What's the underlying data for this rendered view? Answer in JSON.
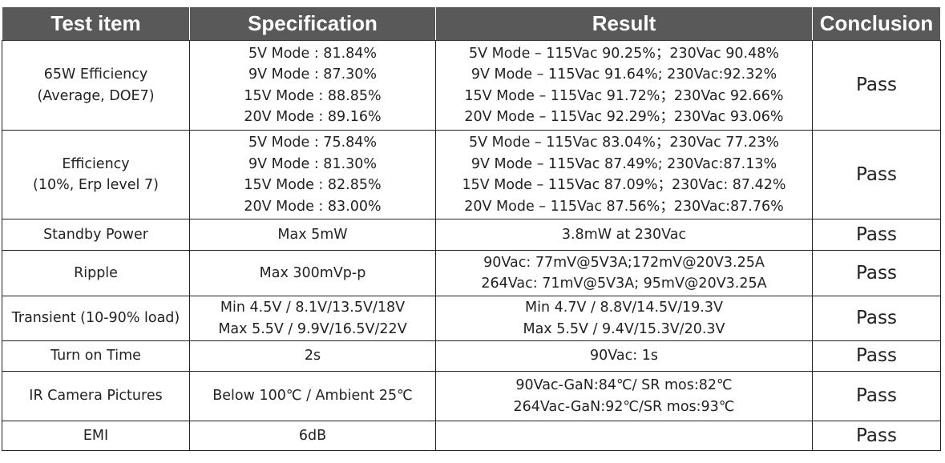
{
  "table": {
    "header": [
      "Test item",
      "Specification",
      "Result",
      "Conclusion"
    ],
    "rows": [
      [
        [
          "65W Efficiency",
          "(Average, DOE7)"
        ],
        [
          "5V Mode : 81.84%",
          "9V Mode : 87.30%",
          "15V Mode : 88.85%",
          "20V Mode : 89.16%"
        ],
        [
          "5V Mode – 115Vac 90.25%；230Vac 90.48%",
          "9V Mode – 115Vac 91.64%; 230Vac:92.32%",
          "15V Mode – 115Vac 91.72%；230Vac 92.66%",
          "20V Mode – 115Vac 92.29%；230Vac 93.06%"
        ],
        [
          "Pass"
        ]
      ],
      [
        [
          "Efficiency",
          "(10%, Erp level 7)"
        ],
        [
          "5V Mode : 75.84%",
          "9V Mode : 81.30%",
          "15V Mode : 82.85%",
          "20V Mode : 83.00%"
        ],
        [
          "5V Mode – 115Vac 83.04%；230Vac 77.23%",
          "9V Mode – 115Vac 87.49%; 230Vac:87.13%",
          "15V Mode – 115Vac 87.09%；230Vac: 87.42%",
          "20V Mode – 115Vac 87.56%；230Vac:87.76%"
        ],
        [
          "Pass"
        ]
      ],
      [
        [
          "Standby Power"
        ],
        [
          "Max 5mW"
        ],
        [
          "3.8mW at 230Vac"
        ],
        [
          "Pass"
        ]
      ],
      [
        [
          "Ripple"
        ],
        [
          "Max 300mVp-p"
        ],
        [
          "90Vac: 77mV@5V3A;172mV@20V3.25A",
          "264Vac: 71mV@5V3A; 95mV@20V3.25A"
        ],
        [
          "Pass"
        ]
      ],
      [
        [
          "Transient (10-90% load)"
        ],
        [
          "Min 4.5V / 8.1V/13.5V/18V",
          "Max 5.5V / 9.9V/16.5V/22V"
        ],
        [
          "Min 4.7V / 8.8V/14.5V/19.3V",
          "Max 5.5V / 9.4V/15.3V/20.3V"
        ],
        [
          "Pass"
        ]
      ],
      [
        [
          "Turn on Time"
        ],
        [
          "2s"
        ],
        [
          "90Vac: 1s"
        ],
        [
          "Pass"
        ]
      ],
      [
        [
          "IR Camera Pictures"
        ],
        [
          "Below 100℃ / Ambient 25℃"
        ],
        [
          "90Vac-GaN:84℃/ SR mos:82℃",
          "264Vac-GaN:92℃/SR mos:93℃"
        ],
        [
          "Pass"
        ]
      ],
      [
        [
          "EMI"
        ],
        [
          "6dB"
        ],
        [],
        [
          "Pass"
        ]
      ]
    ]
  }
}
